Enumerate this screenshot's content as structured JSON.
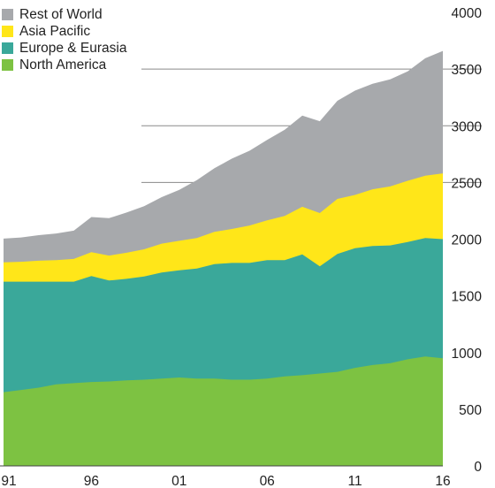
{
  "chart_data": {
    "type": "area",
    "stacked": true,
    "title": "",
    "xlabel": "",
    "ylabel": "",
    "x": [
      1991,
      1992,
      1993,
      1994,
      1995,
      1996,
      1997,
      1998,
      1999,
      2000,
      2001,
      2002,
      2003,
      2004,
      2005,
      2006,
      2007,
      2008,
      2009,
      2010,
      2011,
      2012,
      2013,
      2014,
      2015,
      2016
    ],
    "x_tick_labels": [
      "91",
      "96",
      "01",
      "06",
      "11",
      "16"
    ],
    "x_tick_values": [
      1991,
      1996,
      2001,
      2006,
      2011,
      2016
    ],
    "ylim": [
      0,
      4000
    ],
    "y_ticks": [
      0,
      500,
      1000,
      1500,
      2000,
      2500,
      3000,
      3500,
      4000
    ],
    "y_axis_position": "right",
    "gridlines": [
      2500,
      3000,
      3500
    ],
    "legend_position": "top-left",
    "series": [
      {
        "name": "North America",
        "color": "#7dc242",
        "values": [
          650,
          670,
          690,
          720,
          730,
          740,
          745,
          755,
          760,
          770,
          780,
          770,
          770,
          760,
          760,
          770,
          790,
          800,
          815,
          830,
          865,
          890,
          905,
          940,
          965,
          950
        ]
      },
      {
        "name": "Europe & Eurasia",
        "color": "#3aa89a",
        "values": [
          975,
          955,
          935,
          905,
          895,
          935,
          890,
          895,
          910,
          935,
          945,
          970,
          1010,
          1030,
          1030,
          1045,
          1025,
          1065,
          945,
          1040,
          1055,
          1050,
          1040,
          1035,
          1045,
          1050
        ]
      },
      {
        "name": "Asia Pacific",
        "color": "#ffe619",
        "values": [
          170,
          175,
          185,
          190,
          200,
          210,
          220,
          230,
          240,
          255,
          260,
          270,
          285,
          300,
          330,
          350,
          390,
          420,
          470,
          485,
          470,
          500,
          520,
          540,
          550,
          580
        ]
      },
      {
        "name": "Rest of World",
        "color": "#a7a9ac",
        "values": [
          210,
          215,
          225,
          235,
          250,
          310,
          330,
          355,
          380,
          410,
          450,
          510,
          560,
          620,
          660,
          710,
          760,
          805,
          810,
          865,
          920,
          930,
          945,
          965,
          1035,
          1080
        ]
      }
    ]
  }
}
